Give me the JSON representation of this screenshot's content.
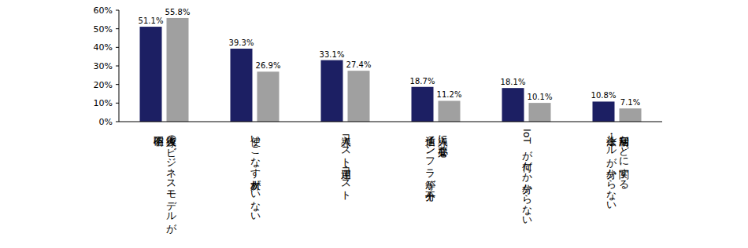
{
  "chart_data": {
    "type": "bar",
    "categories": [
      "導入後のビジネスモデルが\n不明確",
      "使いこなす人材がいない",
      "導入コスト・運用コスト",
      "導入に必要な\n通信インフラ等が不十分",
      "IoTが何だか分からない",
      "利活用などに関する\n法令・ルールが分からない"
    ],
    "series": [
      {
        "color": "#1c1f63",
        "values": [
          51.1,
          39.3,
          33.1,
          18.7,
          18.1,
          10.8
        ],
        "value_labels": [
          "51.1%",
          "39.3%",
          "33.1%",
          "18.7%",
          "18.1%",
          "10.8%"
        ]
      },
      {
        "color": "#a0a0a0",
        "values": [
          55.8,
          26.9,
          27.4,
          11.2,
          10.1,
          7.1
        ],
        "value_labels": [
          "55.8%",
          "26.9%",
          "27.4%",
          "11.2%",
          "10.1%",
          "7.1%"
        ]
      }
    ],
    "ylim": [
      0,
      60
    ],
    "yticks": [
      {
        "value": 0,
        "label": "0%"
      },
      {
        "value": 10,
        "label": "10%"
      },
      {
        "value": 20,
        "label": "20%"
      },
      {
        "value": 30,
        "label": "30%"
      },
      {
        "value": 40,
        "label": "40%"
      },
      {
        "value": 50,
        "label": "50%"
      },
      {
        "value": 60,
        "label": "60%"
      }
    ],
    "grid": false,
    "data_labels": true
  }
}
